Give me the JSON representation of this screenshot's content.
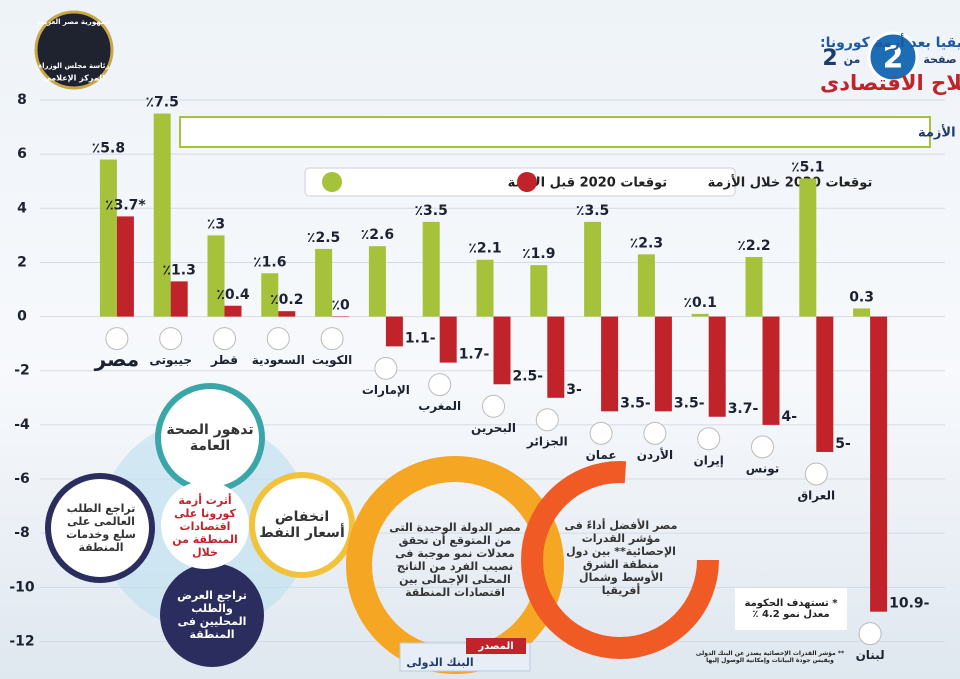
{
  "header": {
    "logo": [
      "جمهورية مصر العربية",
      "رئاسة مجلس الوزراء",
      "المركز الإعلامى"
    ],
    "page_label": "صفحة",
    "page_number": "2",
    "of_label": "من",
    "page_total": "2",
    "kicker": "توقعات المؤسسات الدولية لمعدلات النمو الاقتصادى لدول الشرق الأوسط وشمال أفريقيا بعد أزمة كورونا:",
    "title": "الاقتصاد المصرى سيواصل تفوقه بفضل نجاح برنامج الإصلاح الاقتصادى"
  },
  "chart_data": {
    "type": "bar",
    "subtitle": "البنك الدولى: معدل نمو الاقتصاد المصرى فى صدارة معدلات نمو اقتصادات المنطقة فى توقعات عام 2020 بالرغم من الأزمة",
    "categories": [
      "مصر",
      "جيبوتى",
      "قطر",
      "السعودية",
      "الكويت",
      "الإمارات",
      "المغرب",
      "البحرين",
      "الجزائر",
      "عمان",
      "الأردن",
      "إيران",
      "تونس",
      "العراق",
      "لبنان"
    ],
    "series": [
      {
        "name": "توقعات 2020 قبل الأزمة",
        "color": "#a5c23a",
        "values": [
          5.8,
          7.5,
          3,
          1.6,
          2.5,
          2.6,
          3.5,
          2.1,
          1.9,
          3.5,
          2.3,
          0.1,
          2.2,
          5.1,
          0.3
        ],
        "value_labels": [
          "٪5.8",
          "٪7.5",
          "٪3",
          "٪1.6",
          "٪2.5",
          "٪2.6",
          "٪3.5",
          "٪2.1",
          "٪1.9",
          "٪3.5",
          "٪2.3",
          "٪0.1",
          "٪2.2",
          "٪5.1",
          "0.3"
        ]
      },
      {
        "name": "توقعات 2020 خلال الأزمة",
        "color": "#c1232b",
        "values": [
          3.7,
          1.3,
          0.4,
          0.2,
          0,
          -1.1,
          -1.7,
          -2.5,
          -3,
          -3.5,
          -3.5,
          -3.7,
          -4,
          -5,
          -10.9
        ],
        "value_labels": [
          "٪3.7*",
          "٪1.3",
          "٪0.4",
          "٪0.2",
          "٪0",
          "1.1-",
          "1.7-",
          "2.5-",
          "3-",
          "3.5-",
          "3.5-",
          "3.7-",
          "4-",
          "5-",
          "10.9-"
        ]
      }
    ],
    "ylim": [
      -12.5,
      8
    ],
    "yticks": [
      8,
      6,
      4,
      2,
      0,
      -2,
      -4,
      -6,
      -8,
      -10,
      -12
    ],
    "grid": true
  },
  "impact": {
    "center": "أثرت أزمة كورونا على اقتصادات المنطقة من خلال",
    "items": [
      "تدهور الصحة العامة",
      "انخفاض أسعار النفط",
      "تراجع العرض والطلب المحليين فى المنطقة",
      "تراجع الطلب العالمى على سلع وخدمات المنطقة"
    ]
  },
  "highlights": [
    "مصر الدولة الوحيدة التى من المتوقع أن تحقق معدلات نمو موجبة فى نصيب الفرد من الناتج المحلى الإجمالى بين اقتصادات المنطقة",
    "مصر الأفضل أداءً فى مؤشر القدرات الإحصائية** بين دول منطقة الشرق الأوسط وشمال أفريقيا"
  ],
  "notes": [
    "* تستهدف الحكومة معدل نمو 4.2 ٪",
    "** مؤشر القدرات الإحصائية يصدر عن البنك الدولى ويقيس جودة البيانات وإمكانية الوصول إليها"
  ],
  "source": {
    "label": "المصدر",
    "name": "البنك الدولى"
  }
}
